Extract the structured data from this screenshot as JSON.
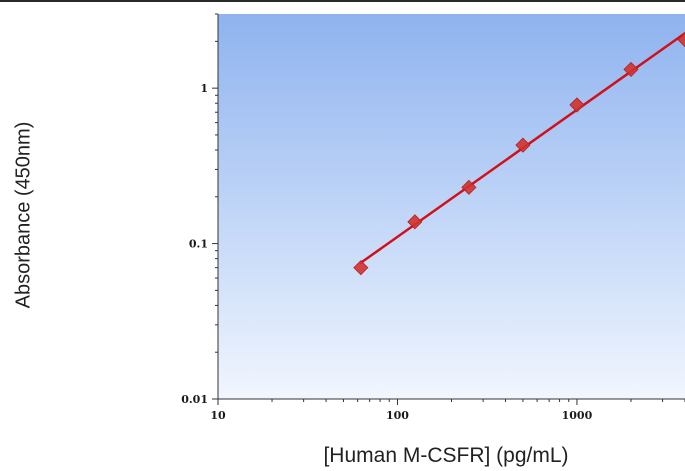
{
  "chart_data": {
    "type": "scatter",
    "title": "",
    "xlabel": "[Human M-CSFR] (pg/mL)",
    "ylabel": "Absorbance (450nm)",
    "xscale": "log",
    "yscale": "log",
    "xlim": [
      10,
      4000
    ],
    "ylim": [
      0.01,
      3
    ],
    "x_ticks": [
      10,
      100,
      1000
    ],
    "x_tick_labels": [
      "10",
      "100",
      "1000"
    ],
    "y_ticks": [
      0.01,
      0.1,
      1
    ],
    "y_tick_labels": [
      "0.01",
      "0.1",
      "1"
    ],
    "grid": false,
    "background": "blue vertical gradient",
    "series": [
      {
        "x": [
          62.5,
          125,
          250,
          500,
          1000,
          2000,
          4000
        ],
        "y": [
          0.07,
          0.138,
          0.23,
          0.43,
          0.78,
          1.32,
          2.05
        ],
        "marker": "diamond",
        "color": "#d2322d",
        "fit_line": {
          "type": "linear-log-log",
          "x_range": [
            62.5,
            4000
          ],
          "color": "#d0101a"
        }
      }
    ]
  }
}
